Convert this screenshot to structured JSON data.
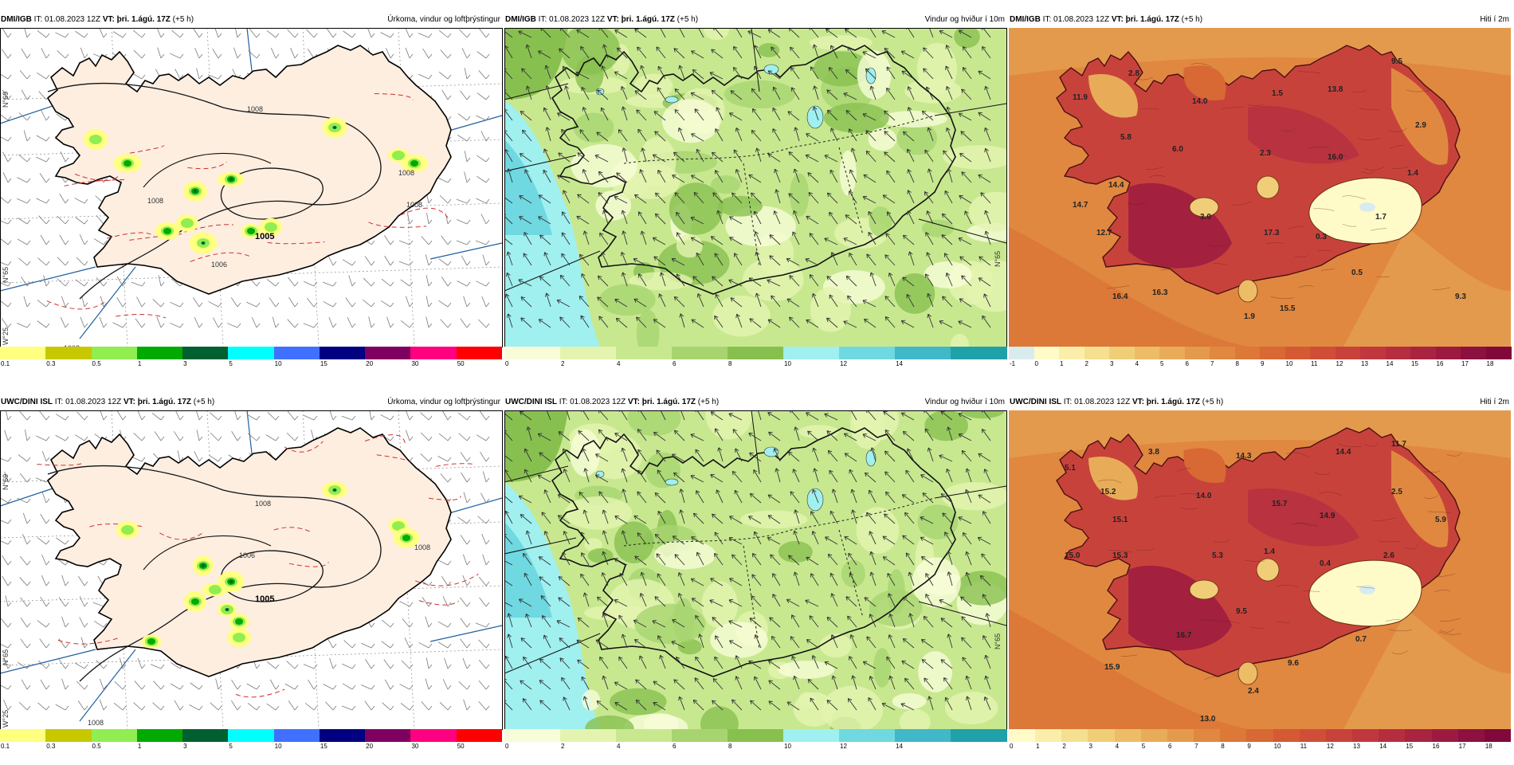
{
  "panels": [
    {
      "id": "p1",
      "model": "DMI/IGB",
      "it_label": "IT:",
      "it": "01.08.2023 12Z",
      "vt_label": "VT:",
      "vt": "þri. 1.ágú. 17Z",
      "offset": "(+5 h)",
      "title": "Úrkoma, vindur og loftþrýstingur",
      "type": "precip",
      "pressure_labels": [
        "1008",
        "1008",
        "1008",
        "1005",
        "1008",
        "1008",
        "1006"
      ],
      "lat_labels": [
        "N°69",
        "N°65",
        "W°25"
      ]
    },
    {
      "id": "p2",
      "model": "DMI/IGB",
      "it_label": "IT:",
      "it": "01.08.2023 12Z",
      "vt_label": "VT:",
      "vt": "þri. 1.ágú. 17Z",
      "offset": "(+5 h)",
      "title": "Vindur og hviður í 10m",
      "type": "wind",
      "lat_labels": [
        "N°65"
      ]
    },
    {
      "id": "p3",
      "model": "DMI/IGB",
      "it_label": "IT:",
      "it": "01.08.2023 12Z",
      "vt_label": "VT:",
      "vt": "þri. 1.ágú. 17Z",
      "offset": "(+5 h)",
      "title": "Hiti í 2m",
      "type": "temp",
      "temps": [
        "11.9",
        "2.8",
        "14.0",
        "1.5",
        "13.8",
        "9.5",
        "5.8",
        "6.0",
        "2.3",
        "16.0",
        "2.9",
        "14.4",
        "14.7",
        "3.0",
        "17.3",
        "12.7",
        "0.3",
        "1.7",
        "1.4",
        "16.4",
        "16.3",
        "1.9",
        "15.5",
        "0.5",
        "9.3"
      ]
    },
    {
      "id": "p4",
      "model": "UWC/DINI ISL",
      "it_label": "IT:",
      "it": "01.08.2023 12Z",
      "vt_label": "VT:",
      "vt": "þri. 1.ágú. 17Z",
      "offset": "(+5 h)",
      "title": "Úrkoma, vindur og loftþrýstingur",
      "type": "precip",
      "pressure_labels": [
        "1008",
        "1005",
        "1006",
        "1008",
        "1008"
      ],
      "lat_labels": [
        "N°69",
        "N°65",
        "W°25"
      ]
    },
    {
      "id": "p5",
      "model": "UWC/DINI ISL",
      "it_label": "IT:",
      "it": "01.08.2023 12Z",
      "vt_label": "VT:",
      "vt": "þri. 1.ágú. 17Z",
      "offset": "(+5 h)",
      "title": "Vindur og hviður í 10m",
      "type": "wind",
      "lat_labels": [
        "N°65"
      ]
    },
    {
      "id": "p6",
      "model": "UWC/DINI ISL",
      "it_label": "IT:",
      "it": "01.08.2023 12Z",
      "vt_label": "VT:",
      "vt": "þri. 1.ágú. 17Z",
      "offset": "(+5 h)",
      "title": "Hiti í 2m",
      "type": "temp",
      "temps": [
        "3.8",
        "5.1",
        "14.3",
        "14.4",
        "11.7",
        "15.2",
        "14.0",
        "15.7",
        "2.5",
        "15.1",
        "14.9",
        "5.9",
        "15.0",
        "15.3",
        "5.3",
        "1.4",
        "0.4",
        "2.6",
        "9.5",
        "16.7",
        "0.7",
        "9.6",
        "15.9",
        "2.4",
        "13.0"
      ]
    }
  ],
  "scales": {
    "precip": {
      "labels": [
        "0.1",
        "0.3",
        "0.5",
        "1",
        "3",
        "5",
        "10",
        "15",
        "20",
        "30",
        "50"
      ],
      "colors": [
        "#ffff80",
        "#c8c800",
        "#90ee50",
        "#00aa00",
        "#006030",
        "#00ffff",
        "#4070ff",
        "#000080",
        "#800060",
        "#ff0080",
        "#ff0000"
      ]
    },
    "wind": {
      "labels": [
        "0",
        "2",
        "4",
        "6",
        "8",
        "10",
        "12",
        "14"
      ],
      "colors": [
        "#f8fcd8",
        "#e4f4b0",
        "#c8e890",
        "#a8d470",
        "#88c050",
        "#a0f0f0",
        "#70d8e0",
        "#40b8c8",
        "#20a0a8"
      ]
    },
    "temp_top": {
      "labels": [
        "-1",
        "0",
        "1",
        "2",
        "3",
        "4",
        "5",
        "6",
        "7",
        "8",
        "9",
        "10",
        "11",
        "12",
        "13",
        "14",
        "15",
        "16",
        "17",
        "18"
      ],
      "colors": [
        "#d8ecf0",
        "#fffbc8",
        "#fbeeaa",
        "#f5e090",
        "#f0ce78",
        "#ecbd66",
        "#e8ac58",
        "#e49a4c",
        "#e08840",
        "#dc7838",
        "#d86834",
        "#d45a34",
        "#d04e38",
        "#c8423c",
        "#c0383e",
        "#b42e40",
        "#a82440",
        "#9c1a40",
        "#8c1040",
        "#80083a"
      ]
    },
    "temp_bottom": {
      "labels": [
        "0",
        "1",
        "2",
        "3",
        "4",
        "5",
        "6",
        "7",
        "8",
        "9",
        "10",
        "11",
        "12",
        "13",
        "14",
        "15",
        "16",
        "17",
        "18"
      ],
      "colors": [
        "#fffbc8",
        "#fbeeaa",
        "#f5e090",
        "#f0ce78",
        "#ecbd66",
        "#e8ac58",
        "#e49a4c",
        "#e08840",
        "#dc7838",
        "#d86834",
        "#d45a34",
        "#d04e38",
        "#c8423c",
        "#c0383e",
        "#b42e40",
        "#a82440",
        "#9c1a40",
        "#8c1040",
        "#80083a"
      ]
    }
  }
}
